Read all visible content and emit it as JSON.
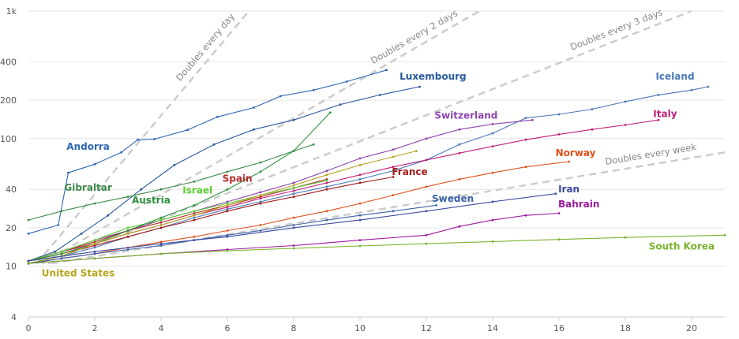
{
  "chart_data": {
    "type": "line",
    "title": "",
    "xlabel": "",
    "ylabel": "",
    "y_scale": "log",
    "xlim": [
      0,
      21
    ],
    "ylim": [
      4,
      1000
    ],
    "x_ticks": [
      0,
      2,
      4,
      6,
      8,
      10,
      12,
      14,
      16,
      18,
      20
    ],
    "y_ticks": [
      {
        "value": 4,
        "label": "4"
      },
      {
        "value": 10,
        "label": "10"
      },
      {
        "value": 20,
        "label": "20"
      },
      {
        "value": 40,
        "label": "40"
      },
      {
        "value": 100,
        "label": "100"
      },
      {
        "value": 200,
        "label": "200"
      },
      {
        "value": 400,
        "label": "400"
      },
      {
        "value": 1000,
        "label": "1k"
      }
    ],
    "grid": true,
    "reference_lines": [
      {
        "label": "Doubles every day",
        "doubling_days": 1,
        "start": [
          0.25,
          10.5
        ],
        "end": [
          6.65,
          1000
        ]
      },
      {
        "label": "Doubles every 2 days",
        "doubling_days": 2,
        "start": [
          0.4,
          10.5
        ],
        "end": [
          13.6,
          1000
        ]
      },
      {
        "label": "Doubles every 3 days",
        "doubling_days": 3,
        "start": [
          0.6,
          10.5
        ],
        "end": [
          20,
          1000
        ]
      },
      {
        "label": "Doubles every week",
        "doubling_days": 7,
        "start": [
          0.7,
          10.5
        ],
        "end": [
          21,
          78
        ]
      }
    ],
    "series": [
      {
        "name": "Andorra",
        "color": "#2f66b3",
        "x": [
          0,
          0.9,
          1.2,
          2,
          2.8,
          3.3,
          3.8,
          4.8,
          5.7,
          6.8,
          7.6,
          8.6,
          9.6,
          10.8
        ],
        "y": [
          18,
          21,
          54,
          63,
          78,
          98,
          99,
          117,
          148,
          175,
          215,
          240,
          280,
          345
        ]
      },
      {
        "name": "Luxembourg",
        "color": "#2a5a9e",
        "x": [
          0,
          0.8,
          1.6,
          2.4,
          3.4,
          4.4,
          5.6,
          6.8,
          8,
          9.4,
          10.6,
          11.8
        ],
        "y": [
          11,
          13,
          18,
          25,
          40,
          62,
          90,
          118,
          140,
          185,
          220,
          255
        ]
      },
      {
        "name": "Iceland",
        "color": "#4a79b8",
        "x": [
          0,
          1,
          2,
          3,
          4,
          5,
          6,
          7,
          8,
          9,
          10,
          11,
          12,
          13,
          14,
          15,
          16,
          17,
          18,
          19,
          20,
          20.5
        ],
        "y": [
          10.5,
          12,
          14,
          17,
          20,
          24,
          28,
          32,
          37,
          42,
          48,
          56,
          68,
          90,
          110,
          145,
          155,
          170,
          195,
          220,
          240,
          255
        ]
      },
      {
        "name": "Switzerland",
        "color": "#8e44ad",
        "x": [
          0,
          1,
          2,
          3,
          4,
          5,
          6,
          7,
          8,
          9,
          10,
          11,
          12,
          13,
          14,
          15.2
        ],
        "y": [
          11,
          13,
          16,
          19,
          23,
          27,
          32,
          38,
          45,
          56,
          70,
          82,
          100,
          118,
          130,
          140
        ]
      },
      {
        "name": "Italy",
        "color": "#c21e7a",
        "x": [
          0,
          1,
          2,
          3,
          4,
          5,
          6,
          7,
          8,
          9,
          10,
          11,
          12,
          13,
          14,
          15,
          16,
          17,
          18,
          19
        ],
        "y": [
          11,
          13,
          15,
          18,
          21,
          25,
          29,
          34,
          39,
          45,
          52,
          60,
          68,
          77,
          87,
          98,
          108,
          118,
          128,
          140
        ]
      },
      {
        "name": "Norway",
        "color": "#e0501b",
        "x": [
          0,
          1,
          2,
          3,
          4,
          5,
          6,
          7,
          8,
          9,
          10,
          11,
          12,
          13,
          14,
          15,
          16.3
        ],
        "y": [
          10.5,
          11.5,
          12.5,
          14,
          15.5,
          17,
          19,
          21,
          24,
          27,
          31,
          36,
          42,
          48,
          54,
          60,
          66
        ]
      },
      {
        "name": "France",
        "color": "#a11a1a",
        "x": [
          0,
          1,
          2,
          3,
          4,
          5,
          6,
          7,
          8,
          9,
          10,
          11
        ],
        "y": [
          11,
          12.5,
          14.5,
          17,
          20,
          23,
          27,
          31,
          35,
          40,
          45,
          50
        ]
      },
      {
        "name": "Spain",
        "color": "#b52a2a",
        "x": [
          0,
          1,
          2,
          3,
          4,
          5,
          6,
          7,
          8,
          9
        ],
        "y": [
          11,
          13,
          15.5,
          19,
          22,
          26,
          30,
          35,
          41,
          48
        ]
      },
      {
        "name": "Israel",
        "color": "#5ccc33",
        "x": [
          0,
          1,
          2,
          3,
          4,
          5,
          6,
          7,
          8,
          9
        ],
        "y": [
          11,
          13,
          16,
          20,
          23,
          27,
          31,
          36,
          41,
          47
        ]
      },
      {
        "name": "Austria",
        "color": "#2a8f3a",
        "x": [
          0,
          1,
          2,
          3,
          4,
          5,
          6,
          7,
          8,
          9.1
        ],
        "y": [
          11,
          12.5,
          15,
          19,
          24,
          30,
          40,
          55,
          80,
          160
        ]
      },
      {
        "name": "Gibraltar",
        "color": "#3c8a4a",
        "x": [
          0,
          1,
          2,
          3,
          4,
          5,
          6,
          7,
          8,
          8.6
        ],
        "y": [
          23,
          27,
          31,
          35,
          40,
          46,
          55,
          65,
          80,
          90
        ]
      },
      {
        "name": "United States",
        "color": "#b5a51c",
        "x": [
          0,
          1,
          2,
          3,
          4,
          5,
          6,
          7,
          8,
          9,
          10,
          11,
          11.7
        ],
        "y": [
          10.5,
          12,
          15,
          18,
          21,
          25,
          30,
          36,
          43,
          52,
          62,
          72,
          80
        ]
      },
      {
        "name": "Sweden",
        "color": "#3b62a8",
        "x": [
          0,
          1,
          2,
          3,
          4,
          5,
          6,
          7,
          8,
          9,
          10,
          11,
          12.3
        ],
        "y": [
          10.5,
          11.5,
          12.5,
          13.5,
          14.5,
          16,
          17.5,
          19,
          21,
          23,
          25,
          27,
          30
        ]
      },
      {
        "name": "Iran",
        "color": "#3d4aa0",
        "x": [
          0,
          2,
          4,
          6,
          8,
          10,
          12,
          14,
          15.9
        ],
        "y": [
          11,
          13,
          15,
          17,
          20,
          23,
          27,
          32,
          37
        ]
      },
      {
        "name": "Bahrain",
        "color": "#9c1a9c",
        "x": [
          0,
          2,
          4,
          6,
          8,
          10,
          12,
          13,
          14,
          15,
          16
        ],
        "y": [
          10.5,
          11.5,
          12.5,
          13.5,
          14.5,
          16,
          17.5,
          20.5,
          23,
          25,
          26
        ]
      },
      {
        "name": "South Korea",
        "color": "#7ab32c",
        "x": [
          0,
          2,
          4,
          6,
          8,
          10,
          12,
          14,
          16,
          18,
          21
        ],
        "y": [
          10.5,
          11.5,
          12.5,
          13.2,
          13.8,
          14.4,
          15,
          15.6,
          16.2,
          16.8,
          17.5
        ]
      }
    ],
    "labels": [
      {
        "series": "Andorra",
        "x": 1.8,
        "y": 82
      },
      {
        "series": "Luxembourg",
        "x": 12.2,
        "y": 290
      },
      {
        "series": "Iceland",
        "x": 19.5,
        "y": 290
      },
      {
        "series": "Switzerland",
        "x": 13.2,
        "y": 143
      },
      {
        "series": "Italy",
        "x": 19.2,
        "y": 148
      },
      {
        "series": "Norway",
        "x": 16.5,
        "y": 73
      },
      {
        "series": "France",
        "x": 11.5,
        "y": 52
      },
      {
        "series": "Spain",
        "x": 6.3,
        "y": 46
      },
      {
        "series": "Israel",
        "x": 5.1,
        "y": 37
      },
      {
        "series": "Gibraltar",
        "x": 1.8,
        "y": 39
      },
      {
        "series": "Austria",
        "x": 3.7,
        "y": 31
      },
      {
        "series": "United States",
        "x": 1.5,
        "y": 8.3
      },
      {
        "series": "Sweden",
        "x": 12.8,
        "y": 32
      },
      {
        "series": "Iran",
        "x": 16.3,
        "y": 38
      },
      {
        "series": "Bahrain",
        "x": 16.6,
        "y": 29
      },
      {
        "series": "South Korea",
        "x": 19.7,
        "y": 13.5
      }
    ]
  }
}
